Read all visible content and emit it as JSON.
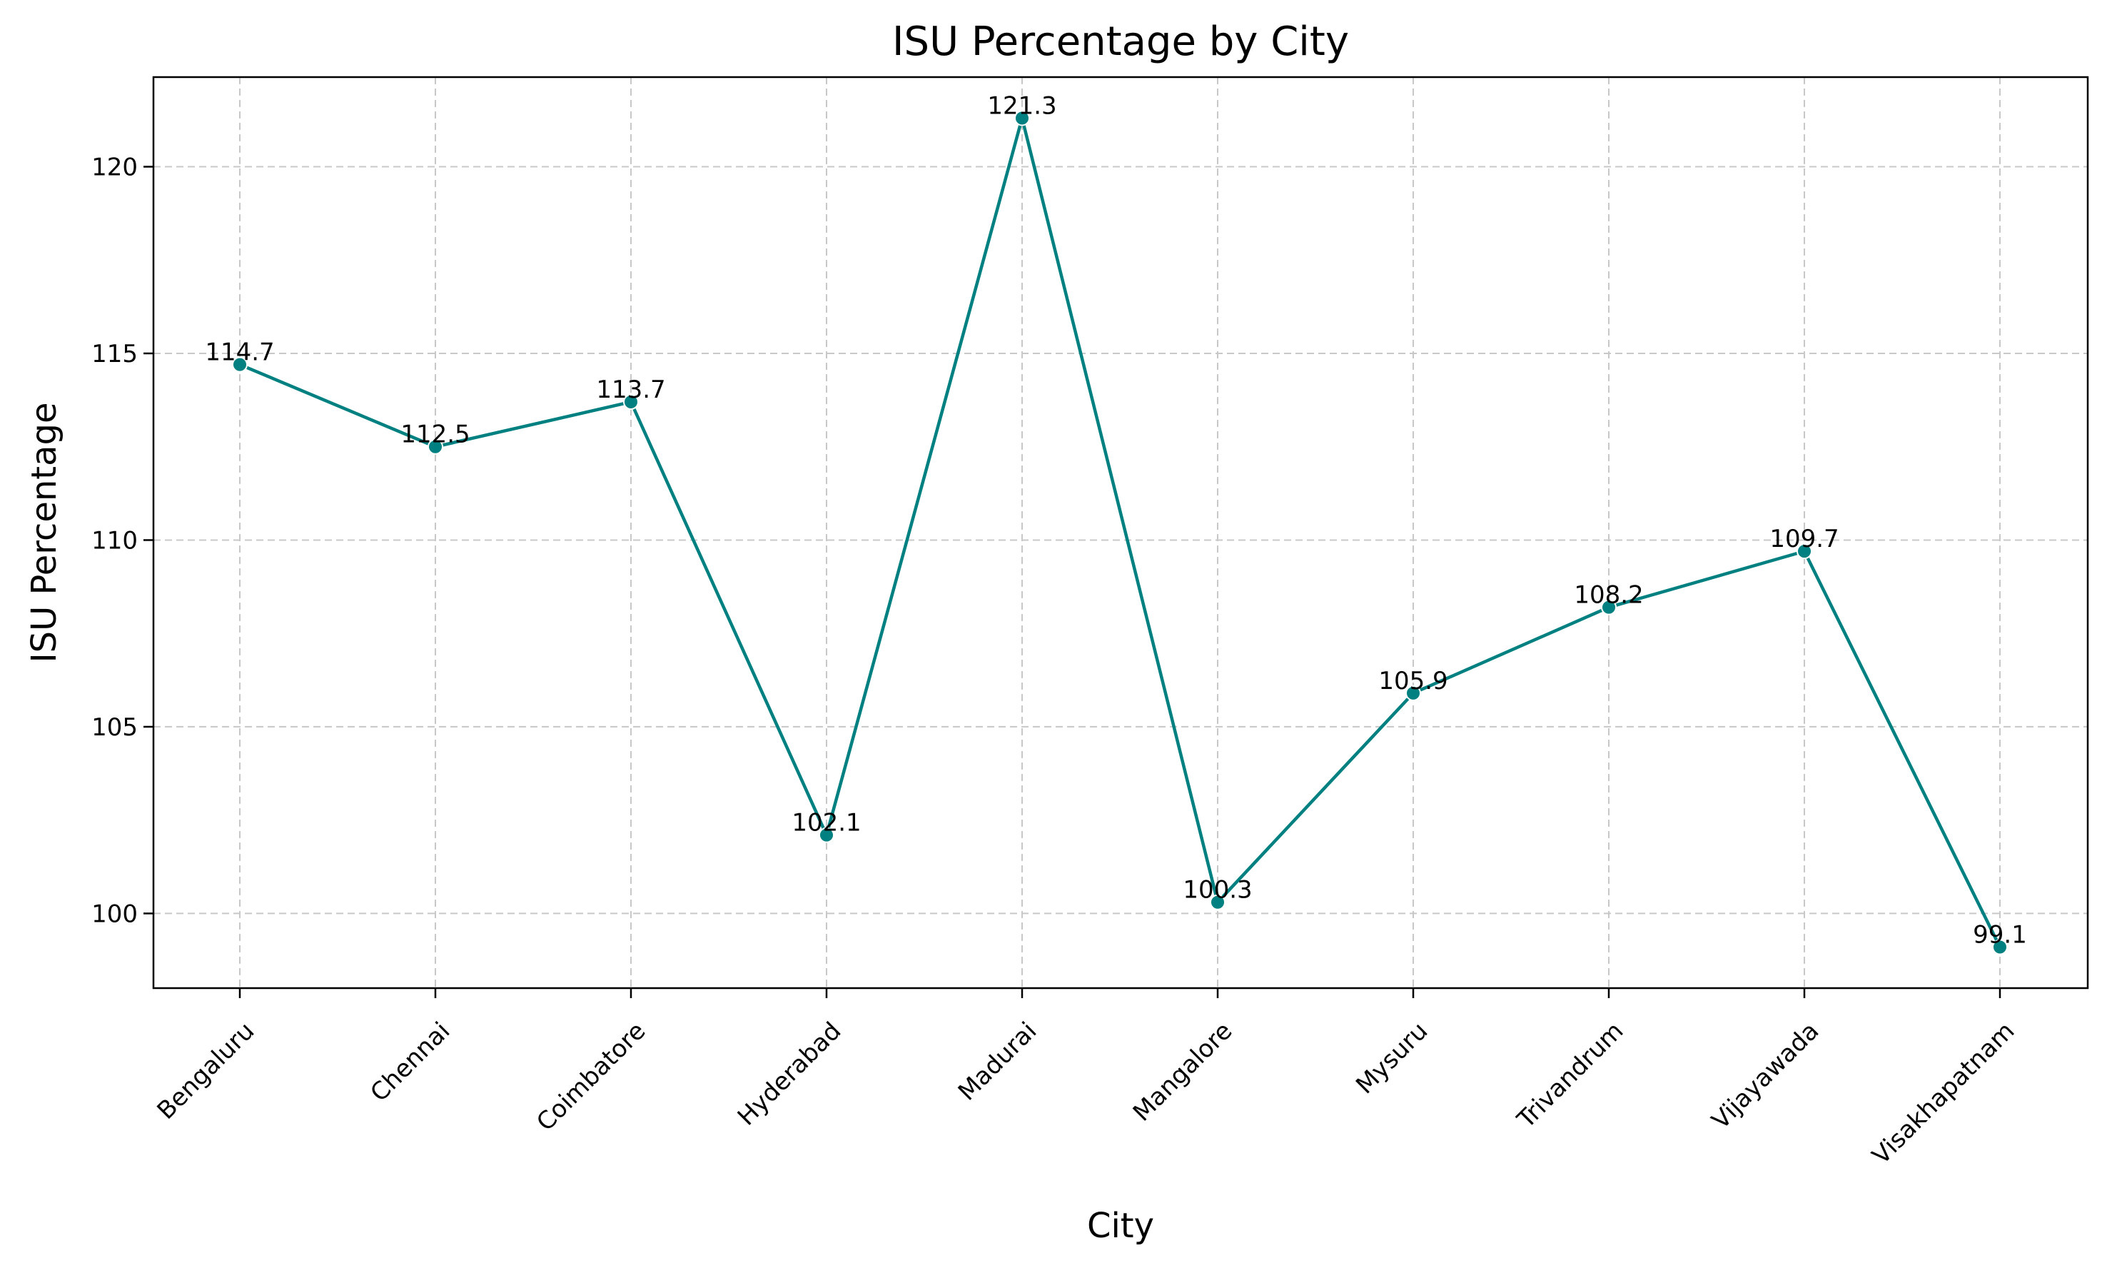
{
  "chart_data": {
    "type": "line",
    "title": "ISU Percentage by City",
    "xlabel": "City",
    "ylabel": "ISU Percentage",
    "categories": [
      "Bengaluru",
      "Chennai",
      "Coimbatore",
      "Hyderabad",
      "Madurai",
      "Mangalore",
      "Mysuru",
      "Trivandrum",
      "Vijayawada",
      "Visakhapatnam"
    ],
    "series": [
      {
        "values": [
          114.7,
          112.5,
          113.7,
          102.1,
          121.3,
          100.3,
          105.9,
          108.2,
          109.7,
          99.1
        ],
        "labels": [
          "114.7",
          "112.5",
          "113.7",
          "102.1",
          "121.3",
          "100.3",
          "105.9",
          "108.2",
          "109.7",
          "99.1"
        ],
        "color": "#008080",
        "marker": "circle"
      }
    ],
    "yticks": [
      100,
      105,
      110,
      115,
      120
    ],
    "ytick_labels": [
      "100",
      "105",
      "110",
      "115",
      "120"
    ],
    "ylim": [
      98.0,
      122.4
    ],
    "grid": true,
    "grid_color": "#c8c8c8",
    "legend": false
  }
}
